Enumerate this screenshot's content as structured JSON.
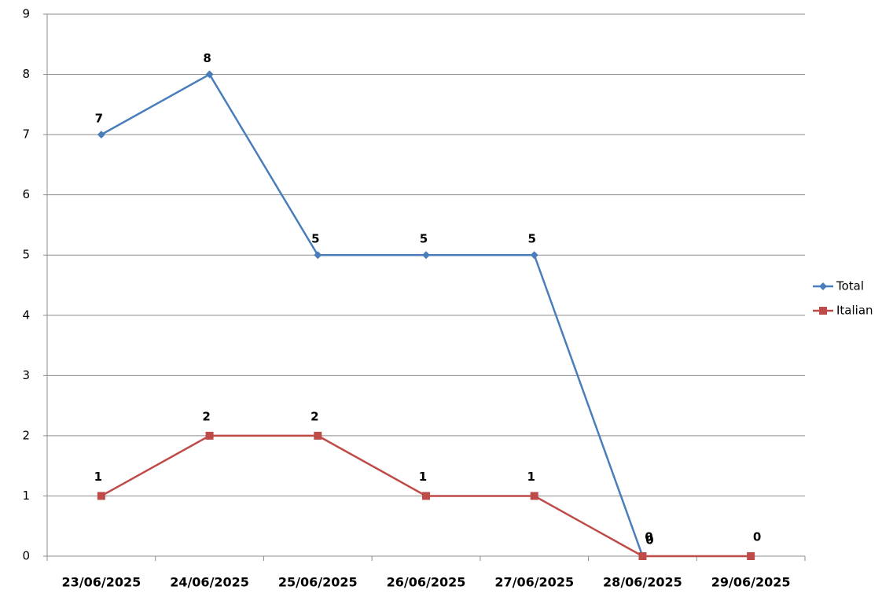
{
  "chart_data": {
    "type": "line",
    "categories": [
      "23/06/2025",
      "24/06/2025",
      "25/06/2025",
      "26/06/2025",
      "27/06/2025",
      "28/06/2025",
      "29/06/2025"
    ],
    "series": [
      {
        "name": "Total",
        "color": "#4a7ebb",
        "marker": "diamond",
        "values": [
          7,
          8,
          5,
          5,
          5,
          0,
          null
        ]
      },
      {
        "name": "Italian",
        "color": "#be4b48",
        "marker": "square",
        "values": [
          1,
          2,
          2,
          1,
          1,
          0,
          0
        ]
      }
    ],
    "ylim": [
      0,
      9
    ],
    "yticks": [
      0,
      1,
      2,
      3,
      4,
      5,
      6,
      7,
      8,
      9
    ],
    "grid": true,
    "legend": "right"
  }
}
